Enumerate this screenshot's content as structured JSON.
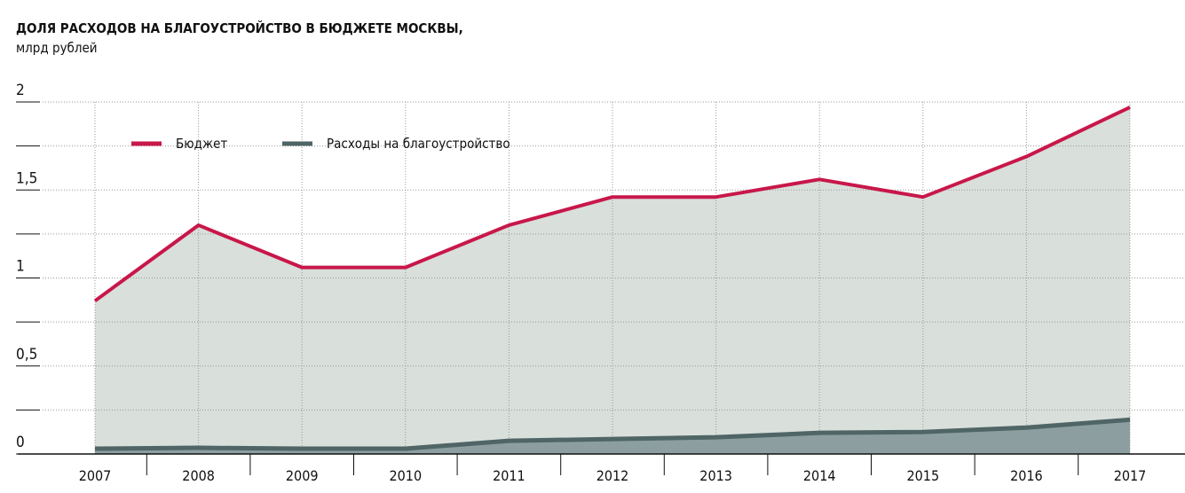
{
  "chart_data": {
    "type": "area",
    "title": "ДОЛЯ РАСХОДОВ НА БЛАГОУСТРОЙСТВО В БЮДЖЕТЕ МОСКВЫ,",
    "subtitle": "млрд рублей",
    "categories": [
      "2007",
      "2008",
      "2009",
      "2010",
      "2011",
      "2012",
      "2013",
      "2014",
      "2015",
      "2016",
      "2017"
    ],
    "series": [
      {
        "name": "Бюджет",
        "color": "#c8174a",
        "fill": "#d9dfdb",
        "values": [
          0.87,
          1.3,
          1.06,
          1.06,
          1.3,
          1.46,
          1.46,
          1.56,
          1.46,
          1.69,
          1.97
        ]
      },
      {
        "name": "Расходы на благоустройство",
        "color": "#4f6566",
        "fill": "#8c9ea0",
        "values": [
          0.03,
          0.035,
          0.03,
          0.03,
          0.075,
          0.085,
          0.095,
          0.12,
          0.125,
          0.15,
          0.195
        ]
      }
    ],
    "ylim": [
      0,
      2
    ],
    "yticks": [
      0,
      {
        "value": 0.5,
        "label": "0,5"
      },
      1,
      {
        "value": 1.5,
        "label": "1,5"
      },
      2
    ],
    "yticks_minor": [
      0.25,
      0.75,
      1.25,
      1.75
    ],
    "grid": true
  }
}
